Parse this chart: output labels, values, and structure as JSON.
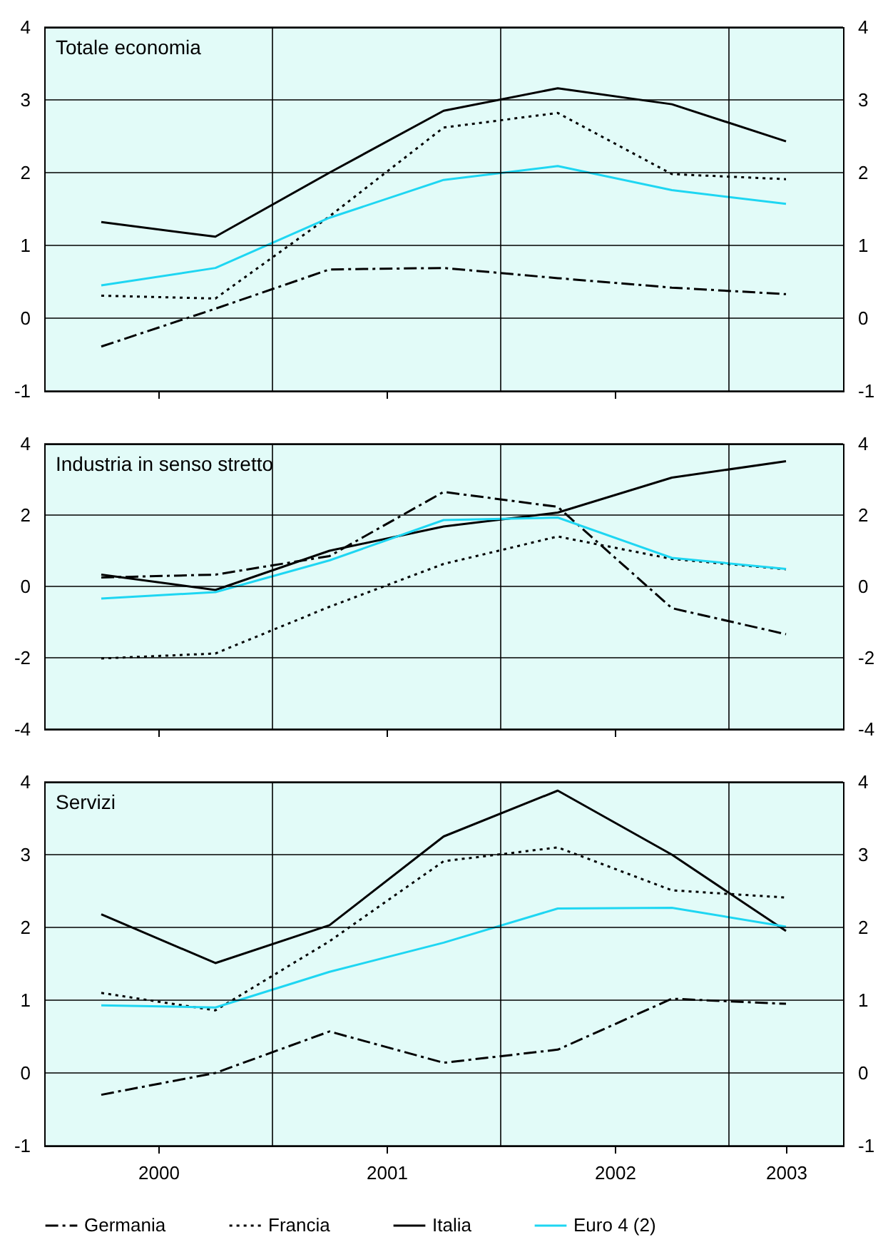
{
  "chart_data": [
    {
      "type": "line",
      "title": "Totale economia",
      "x": [
        2000.25,
        2000.75,
        2001.25,
        2001.75,
        2002.25,
        2002.75,
        2003.25
      ],
      "xlim": [
        2000,
        2003.5
      ],
      "xticks": [
        {
          "value": 2000.5,
          "label": null
        },
        {
          "value": 2001.5,
          "label": null
        },
        {
          "value": 2002.5,
          "label": null
        }
      ],
      "ylim": [
        -1,
        4
      ],
      "yticks": [
        -1,
        0,
        1,
        2,
        3,
        4
      ],
      "y2lim": [
        -1,
        4
      ],
      "y2ticks": [
        -1,
        0,
        1,
        2,
        3,
        4
      ],
      "grid": "y",
      "tick_labels": "y",
      "ref_lines": [
        {
          "axis": "x",
          "value": 2001
        },
        {
          "axis": "x",
          "value": 2002
        },
        {
          "axis": "x",
          "value": 2003
        }
      ],
      "series": [
        {
          "color": "#000000",
          "line_style": "dashdot",
          "values": [
            -0.39,
            0.13,
            0.67,
            0.69,
            0.55,
            0.42,
            0.33
          ]
        },
        {
          "color": "#000000",
          "line_style": "dotted",
          "values": [
            0.31,
            0.27,
            1.4,
            2.62,
            2.82,
            1.98,
            1.91
          ]
        },
        {
          "color": "#000000",
          "line_style": "solid",
          "values": [
            1.32,
            1.12,
            2.0,
            2.85,
            3.16,
            2.94,
            2.43
          ]
        },
        {
          "color": "#1ed6f2",
          "line_style": "solid",
          "values": [
            0.45,
            0.69,
            1.38,
            1.9,
            2.09,
            1.76,
            1.57
          ]
        }
      ]
    },
    {
      "type": "line",
      "title": "Industria in senso stretto",
      "x": [
        2000.25,
        2000.75,
        2001.25,
        2001.75,
        2002.25,
        2002.75,
        2003.25
      ],
      "xlim": [
        2000,
        2003.5
      ],
      "xticks": [
        {
          "value": 2000.5,
          "label": null
        },
        {
          "value": 2001.5,
          "label": null
        },
        {
          "value": 2002.5,
          "label": null
        }
      ],
      "ylim": [
        -4,
        4
      ],
      "yticks": [
        -4,
        -2,
        0,
        2,
        4
      ],
      "y2lim": [
        -4,
        4
      ],
      "y2ticks": [
        -4,
        -2,
        0,
        2,
        4
      ],
      "grid": "y",
      "tick_labels": "y",
      "ref_lines": [
        {
          "axis": "x",
          "value": 2001
        },
        {
          "axis": "x",
          "value": 2002
        },
        {
          "axis": "x",
          "value": 2003
        }
      ],
      "series": [
        {
          "color": "#000000",
          "line_style": "dashdot",
          "values": [
            0.25,
            0.33,
            0.85,
            2.65,
            2.23,
            -0.61,
            -1.34
          ]
        },
        {
          "color": "#000000",
          "line_style": "dotted",
          "values": [
            -2.02,
            -1.88,
            -0.57,
            0.63,
            1.4,
            0.77,
            0.48
          ]
        },
        {
          "color": "#000000",
          "line_style": "solid",
          "values": [
            0.33,
            -0.1,
            1.0,
            1.68,
            2.07,
            3.05,
            3.51
          ]
        },
        {
          "color": "#1ed6f2",
          "line_style": "solid",
          "values": [
            -0.34,
            -0.16,
            0.73,
            1.86,
            1.93,
            0.8,
            0.49
          ]
        }
      ]
    },
    {
      "type": "line",
      "title": "Servizi",
      "x": [
        2000.25,
        2000.75,
        2001.25,
        2001.75,
        2002.25,
        2002.75,
        2003.25
      ],
      "xlim": [
        2000,
        2003.5
      ],
      "xticks": [
        {
          "value": 2000.5,
          "label": "2000"
        },
        {
          "value": 2001.5,
          "label": "2001"
        },
        {
          "value": 2002.5,
          "label": "2002"
        },
        {
          "value": 2003.25,
          "label": "2003"
        }
      ],
      "ylim": [
        -1,
        4
      ],
      "yticks": [
        -1,
        0,
        1,
        2,
        3,
        4
      ],
      "y2lim": [
        -1,
        4
      ],
      "y2ticks": [
        -1,
        0,
        1,
        2,
        3,
        4
      ],
      "grid": "y",
      "legend": "bottom",
      "ref_lines": [
        {
          "axis": "x",
          "value": 2001
        },
        {
          "axis": "x",
          "value": 2002
        },
        {
          "axis": "x",
          "value": 2003
        }
      ],
      "series": [
        {
          "name": "Germania",
          "color": "#000000",
          "line_style": "dashdot",
          "values": [
            -0.3,
            0.0,
            0.57,
            0.14,
            0.32,
            1.02,
            0.95
          ]
        },
        {
          "name": "Francia",
          "color": "#000000",
          "line_style": "dotted",
          "values": [
            1.1,
            0.86,
            1.81,
            2.91,
            3.1,
            2.51,
            2.41
          ]
        },
        {
          "name": "Italia",
          "color": "#000000",
          "line_style": "solid",
          "values": [
            2.18,
            1.51,
            2.03,
            3.25,
            3.88,
            3.0,
            1.95
          ]
        },
        {
          "name": "Euro 4 (2)",
          "color": "#1ed6f2",
          "line_style": "solid",
          "values": [
            0.93,
            0.9,
            1.39,
            1.79,
            2.26,
            2.27,
            2.01
          ]
        }
      ]
    }
  ]
}
